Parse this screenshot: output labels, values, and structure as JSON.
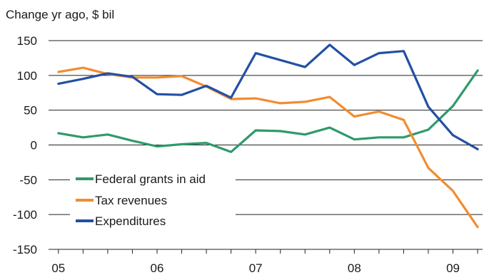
{
  "chart_data": {
    "type": "line",
    "ylabel": "Change yr ago, $ bil",
    "ylim": [
      -150,
      150
    ],
    "yticks": [
      -150,
      -100,
      -50,
      0,
      50,
      100,
      150
    ],
    "x": [
      2005.0,
      2005.25,
      2005.5,
      2005.75,
      2006.0,
      2006.25,
      2006.5,
      2006.75,
      2007.0,
      2007.25,
      2007.5,
      2007.75,
      2008.0,
      2008.25,
      2008.5,
      2008.75,
      2009.0,
      2009.25
    ],
    "xticks": [
      {
        "x": 2005,
        "label": "05"
      },
      {
        "x": 2006,
        "label": "06"
      },
      {
        "x": 2007,
        "label": "07"
      },
      {
        "x": 2008,
        "label": "08"
      },
      {
        "x": 2009,
        "label": "09"
      }
    ],
    "xlim": [
      2004.9,
      2009.3
    ],
    "grid": "horizontal",
    "legend_position": "lower-left",
    "series": [
      {
        "name": "Federal grants in aid",
        "color": "#2e9a6b",
        "values": [
          17,
          11,
          15,
          6,
          -2,
          1,
          3,
          -10,
          21,
          20,
          15,
          25,
          8,
          11,
          11,
          22,
          56,
          107
        ]
      },
      {
        "name": "Tax revenues",
        "color": "#f28c2f",
        "values": [
          105,
          111,
          102,
          97,
          97,
          99,
          84,
          66,
          67,
          60,
          62,
          69,
          41,
          48,
          36,
          -33,
          -66,
          -118
        ]
      },
      {
        "name": "Expenditures",
        "color": "#2350a3",
        "values": [
          88,
          95,
          103,
          98,
          73,
          72,
          85,
          68,
          132,
          122,
          112,
          144,
          115,
          132,
          135,
          55,
          14,
          -6
        ]
      }
    ]
  }
}
